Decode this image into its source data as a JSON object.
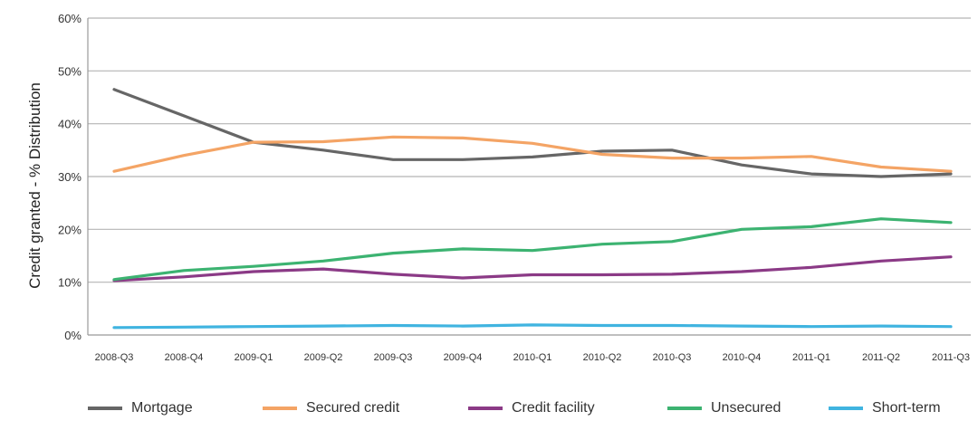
{
  "chart_data": {
    "type": "line",
    "title": "",
    "xlabel": "",
    "ylabel": "Credit granted - % Distribution",
    "ylim": [
      0,
      60
    ],
    "yticks": [
      "0%",
      "10%",
      "20%",
      "30%",
      "40%",
      "50%",
      "60%"
    ],
    "grid": true,
    "legend_position": "bottom",
    "categories": [
      "2008-Q3",
      "2008-Q4",
      "2009-Q1",
      "2009-Q2",
      "2009-Q3",
      "2009-Q4",
      "2010-Q1",
      "2010-Q2",
      "2010-Q3",
      "2010-Q4",
      "2011-Q1",
      "2011-Q2",
      "2011-Q3"
    ],
    "series": [
      {
        "name": "Mortgage",
        "color": "#666666",
        "values": [
          46.5,
          41.5,
          36.5,
          35.0,
          33.2,
          33.2,
          33.7,
          34.8,
          35.0,
          32.2,
          30.5,
          30.0,
          30.5
        ]
      },
      {
        "name": "Secured credit",
        "color": "#f4a465",
        "values": [
          31.0,
          34.0,
          36.5,
          36.6,
          37.5,
          37.3,
          36.3,
          34.2,
          33.5,
          33.5,
          33.8,
          31.8,
          31.0
        ]
      },
      {
        "name": "Credit facility",
        "color": "#8b3a86",
        "values": [
          10.3,
          11.0,
          12.0,
          12.5,
          11.5,
          10.8,
          11.4,
          11.4,
          11.5,
          12.0,
          12.8,
          14.0,
          14.8
        ]
      },
      {
        "name": "Unsecured",
        "color": "#3cb371",
        "values": [
          10.5,
          12.2,
          13.0,
          14.0,
          15.5,
          16.3,
          16.0,
          17.2,
          17.7,
          20.0,
          20.5,
          22.0,
          21.3
        ]
      },
      {
        "name": "Short-term",
        "color": "#40b4e0",
        "values": [
          1.4,
          1.5,
          1.6,
          1.7,
          1.8,
          1.7,
          1.9,
          1.8,
          1.8,
          1.7,
          1.6,
          1.7,
          1.6
        ]
      }
    ]
  }
}
